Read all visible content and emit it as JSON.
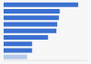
{
  "chart_data": {
    "type": "bar",
    "orientation": "horizontal",
    "categories": [
      null,
      null,
      null,
      null,
      null,
      null,
      null,
      null,
      null
    ],
    "values": [
      89,
      67,
      66,
      64,
      63,
      53,
      34,
      34,
      28
    ],
    "colors": [
      "#3a70d0",
      "#3a70d0",
      "#3a70d0",
      "#3a70d0",
      "#3a70d0",
      "#3a70d0",
      "#3a70d0",
      "#3a70d0",
      "#b5c8ea"
    ],
    "xlim": [
      0,
      100
    ],
    "xticks": [
      0,
      100
    ],
    "grid": false,
    "tick_labels": false
  }
}
